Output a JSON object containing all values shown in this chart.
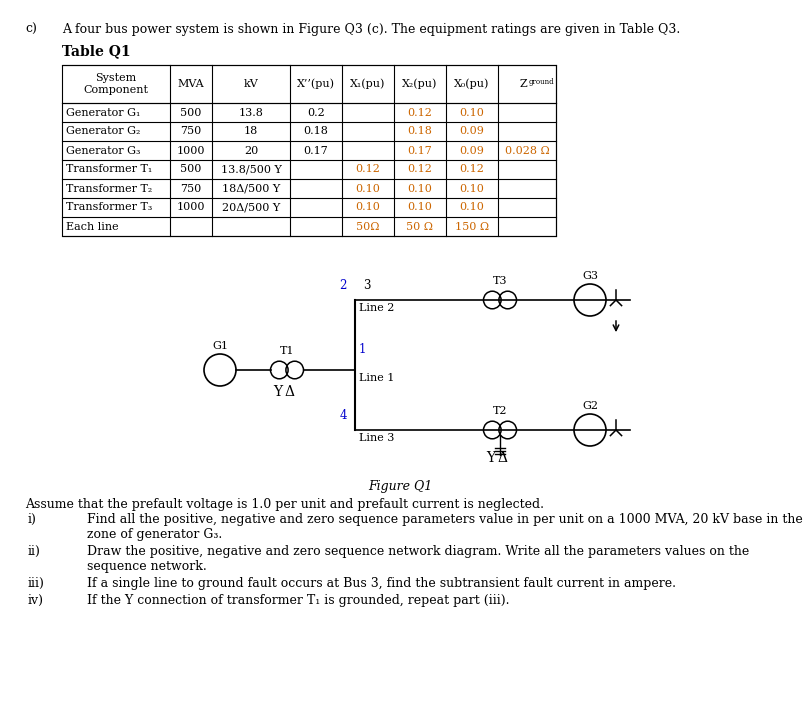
{
  "table_title": "Table Q1",
  "table_rows": [
    [
      "Generator G₁",
      "500",
      "13.8",
      "0.2",
      "",
      "0.12",
      "0.10",
      ""
    ],
    [
      "Generator G₂",
      "750",
      "18",
      "0.18",
      "",
      "0.18",
      "0.09",
      ""
    ],
    [
      "Generator G₃",
      "1000",
      "20",
      "0.17",
      "",
      "0.17",
      "0.09",
      "0.028 Ω"
    ],
    [
      "Transformer T₁",
      "500",
      "13.8/500 Y",
      "",
      "0.12",
      "0.12",
      "0.12",
      ""
    ],
    [
      "Transformer T₂",
      "750",
      "18Δ/500 Y",
      "",
      "0.10",
      "0.10",
      "0.10",
      ""
    ],
    [
      "Transformer T₃",
      "1000",
      "20Δ/500 Y",
      "",
      "0.10",
      "0.10",
      "0.10",
      ""
    ],
    [
      "Each line",
      "",
      "",
      "",
      "50Ω",
      "50 Ω",
      "150 Ω",
      ""
    ]
  ],
  "figure_caption": "Figure Q1",
  "assume_text": "Assume that the prefault voltage is 1.0 per unit and prefault current is neglected.",
  "items": [
    [
      "i)",
      "Find all the positive, negative and zero sequence parameters value in per unit on a 1000 MVA, 20 kV base in the\nzone of generator G₃."
    ],
    [
      "ii)",
      "Draw the positive, negative and zero sequence network diagram. Write all the parameters values on the\nsequence network."
    ],
    [
      "iii)",
      "If a single line to ground fault occurs at Bus 3, find the subtransient fault current in ampere."
    ],
    [
      "iv)",
      "If the Y connection of transformer T₁ is grounded, repeat part (iii)."
    ]
  ],
  "text_color": "#000000",
  "orange_color": "#cc6600",
  "blue_color": "#0000cc",
  "bg_color": "#ffffff"
}
